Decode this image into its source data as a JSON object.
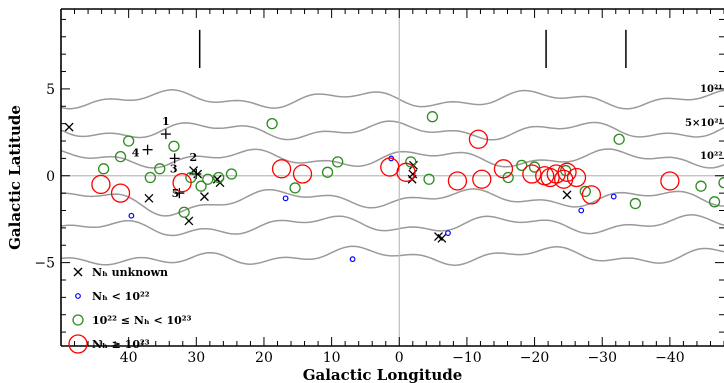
{
  "chart_data": {
    "type": "scatter",
    "xlabel": "Galactic Longitude",
    "ylabel": "Galactic Latitude",
    "xlim": [
      50,
      -48
    ],
    "ylim": [
      -9.8,
      9.6
    ],
    "x_direction": "decreasing",
    "xticks": [
      40,
      30,
      20,
      10,
      0,
      -10,
      -20,
      -30,
      -40
    ],
    "xtick_labels": [
      "40",
      "30",
      "20",
      "10",
      "0",
      "−10",
      "−20",
      "−30",
      "−40"
    ],
    "yticks": [
      -5,
      0,
      5
    ],
    "ytick_labels": [
      "−5",
      "0",
      "5"
    ],
    "grid": false,
    "reference_lines": {
      "x": 0,
      "y": 0
    },
    "vertical_markers": [
      {
        "x": 29.5,
        "y_range": [
          8.4,
          6.2
        ]
      },
      {
        "x": -21.7,
        "y_range": [
          8.4,
          6.2
        ]
      },
      {
        "x": -33.5,
        "y_range": [
          8.4,
          6.2
        ]
      }
    ],
    "contours": [
      {
        "label": "10²¹",
        "side": "upper",
        "offset": 4.4
      },
      {
        "label": "5×10²¹",
        "side": "upper",
        "offset": 2.6
      },
      {
        "label": "10²²",
        "side": "upper",
        "offset": 1.0
      },
      {
        "label": "",
        "side": "lower",
        "offset": 1.3
      },
      {
        "label": "",
        "side": "lower",
        "offset": 2.8
      },
      {
        "label": "",
        "side": "lower",
        "offset": 4.6
      }
    ],
    "legend_position": "bottom-left",
    "legend": [
      {
        "marker": "x",
        "label": "Nₕ unknown"
      },
      {
        "marker": "blue-dot",
        "label": "Nₕ < 10²²"
      },
      {
        "marker": "green-circle",
        "label": "10²² ≤ Nₕ < 10²³"
      },
      {
        "marker": "red-circle",
        "label": "Nₕ ≥ 10²³"
      }
    ],
    "labeled_sources": [
      {
        "label": "1",
        "x": 34.5,
        "y": 2.4
      },
      {
        "label": "2",
        "x": 30.0,
        "y": 0.1
      },
      {
        "label": "3",
        "x": 33.2,
        "y": 1.0
      },
      {
        "label": "4",
        "x": 37.2,
        "y": 1.5
      },
      {
        "label": "5",
        "x": 32.5,
        "y": -1.0
      }
    ],
    "series": [
      {
        "name": "Nₕ unknown",
        "marker": "x",
        "color": "#000000",
        "points": [
          [
            48.8,
            2.8
          ],
          [
            37.0,
            -1.3
          ],
          [
            31.1,
            -2.6
          ],
          [
            30.4,
            0.3
          ],
          [
            29.8,
            0.1
          ],
          [
            28.8,
            -1.2
          ],
          [
            26.9,
            -0.2
          ],
          [
            26.5,
            -0.4
          ],
          [
            -2.0,
            0.1
          ],
          [
            -6.3,
            -3.6
          ],
          [
            -5.8,
            -3.5
          ],
          [
            -1.9,
            -0.2
          ],
          [
            -24.8,
            -1.1
          ],
          [
            -2.1,
            0.6
          ]
        ]
      },
      {
        "name": "labeled (+)",
        "marker": "plus",
        "color": "#000000",
        "points": [
          [
            34.5,
            2.4
          ],
          [
            37.2,
            1.5
          ],
          [
            33.2,
            1.0
          ],
          [
            30.0,
            0.1
          ],
          [
            32.5,
            -1.0
          ]
        ]
      },
      {
        "name": "Nₕ < 10²²",
        "marker": "blue-dot",
        "color": "#0000ff",
        "points": [
          [
            39.6,
            -2.3
          ],
          [
            16.8,
            -1.3
          ],
          [
            6.9,
            -4.8
          ],
          [
            1.2,
            1.0
          ],
          [
            -7.2,
            -3.3
          ],
          [
            -26.9,
            -2.0
          ],
          [
            -31.7,
            -1.2
          ]
        ]
      },
      {
        "name": "10²² ≤ Nₕ < 10²³",
        "marker": "green-circle",
        "color": "#2e8b22",
        "points": [
          [
            43.7,
            0.4
          ],
          [
            41.2,
            1.1
          ],
          [
            40.0,
            2.0
          ],
          [
            36.8,
            -0.1
          ],
          [
            35.4,
            0.4
          ],
          [
            33.3,
            1.7
          ],
          [
            31.8,
            -2.1
          ],
          [
            30.8,
            -0.1
          ],
          [
            29.3,
            -0.6
          ],
          [
            28.3,
            -0.2
          ],
          [
            26.7,
            -0.1
          ],
          [
            24.8,
            0.1
          ],
          [
            18.8,
            3.0
          ],
          [
            15.4,
            -0.7
          ],
          [
            10.6,
            0.2
          ],
          [
            9.1,
            0.8
          ],
          [
            -1.7,
            0.8
          ],
          [
            -4.4,
            -0.2
          ],
          [
            -4.9,
            3.4
          ],
          [
            -16.1,
            -0.1
          ],
          [
            -18.1,
            0.6
          ],
          [
            -20.0,
            0.5
          ],
          [
            -24.6,
            0.3
          ],
          [
            -27.5,
            -0.9
          ],
          [
            -32.5,
            2.1
          ],
          [
            -34.9,
            -1.6
          ],
          [
            -44.6,
            -0.6
          ],
          [
            -46.6,
            -1.5
          ],
          [
            -48.0,
            -0.4
          ]
        ]
      },
      {
        "name": "Nₕ ≥ 10²³",
        "marker": "red-circle",
        "color": "#ff0000",
        "points": [
          [
            44.1,
            -0.5
          ],
          [
            41.2,
            -1.0
          ],
          [
            32.1,
            -0.4
          ],
          [
            17.4,
            0.4
          ],
          [
            14.3,
            0.1
          ],
          [
            1.4,
            0.5
          ],
          [
            -1.0,
            0.2
          ],
          [
            -8.6,
            -0.3
          ],
          [
            -11.7,
            2.1
          ],
          [
            -12.2,
            -0.2
          ],
          [
            -15.4,
            0.4
          ],
          [
            -19.6,
            0.1
          ],
          [
            -21.5,
            0.0
          ],
          [
            -22.3,
            -0.1
          ],
          [
            -23.2,
            0.1
          ],
          [
            -24.3,
            -0.2
          ],
          [
            -24.8,
            0.2
          ],
          [
            -26.2,
            -0.1
          ],
          [
            -28.4,
            -1.1
          ],
          [
            -40.0,
            -0.3
          ]
        ]
      }
    ]
  }
}
